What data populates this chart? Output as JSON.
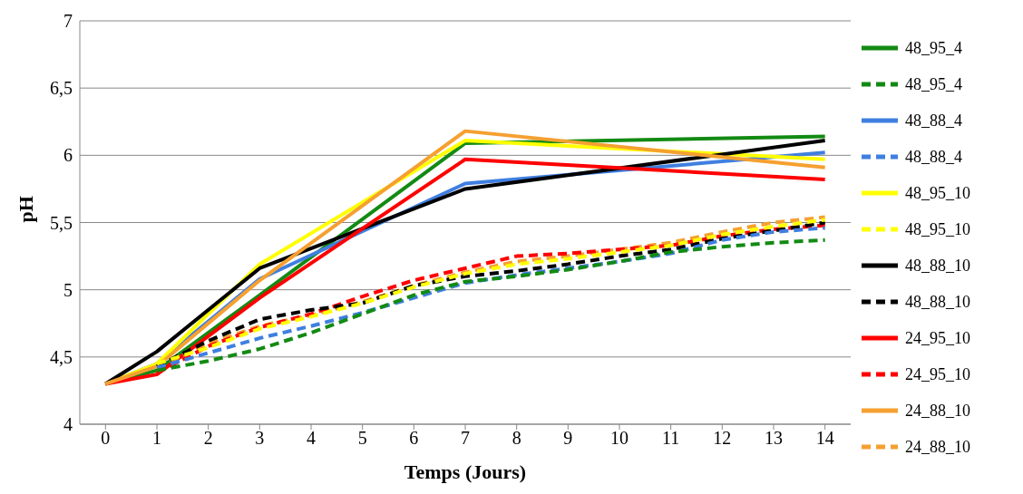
{
  "chart_data": {
    "type": "line",
    "xlabel": "Temps (Jours)",
    "ylabel": "pH",
    "xlim": [
      -0.5,
      14.5
    ],
    "xticks": [
      0,
      1,
      2,
      3,
      4,
      5,
      6,
      7,
      8,
      9,
      10,
      11,
      12,
      13,
      14
    ],
    "ylim": [
      4,
      7
    ],
    "yticks": [
      4,
      {
        "value": 4.5,
        "label": "4,5"
      },
      5,
      {
        "value": 5.5,
        "label": "5,5"
      },
      6,
      {
        "value": 6.5,
        "label": "6,5"
      },
      7
    ],
    "grid": "y",
    "legend": "right",
    "marker": "none",
    "series": [
      {
        "name": "48_95_4",
        "color": "#138a13",
        "line_style": "solid",
        "x": [
          0,
          1,
          3,
          7,
          14
        ],
        "values": [
          4.3,
          4.4,
          4.96,
          6.09,
          6.14
        ]
      },
      {
        "name": "48_95_4",
        "color": "#138a13",
        "line_style": "dashed",
        "x": [
          1,
          2,
          3,
          4,
          5,
          6,
          7,
          8,
          9,
          10,
          11,
          12,
          13,
          14
        ],
        "values": [
          4.4,
          4.47,
          4.56,
          4.68,
          4.82,
          4.96,
          5.06,
          5.1,
          5.15,
          5.21,
          5.28,
          5.32,
          5.35,
          5.37
        ]
      },
      {
        "name": "48_88_4",
        "color": "#3f7fe0",
        "line_style": "solid",
        "x": [
          0,
          1,
          3,
          7,
          14
        ],
        "values": [
          4.3,
          4.45,
          5.08,
          5.79,
          6.02
        ]
      },
      {
        "name": "48_88_4",
        "color": "#3f7fe0",
        "line_style": "dashed",
        "x": [
          1,
          2,
          3,
          4,
          5,
          6,
          7,
          8,
          9,
          10,
          11,
          12,
          13,
          14
        ],
        "values": [
          4.42,
          4.53,
          4.64,
          4.73,
          4.83,
          4.94,
          5.05,
          5.11,
          5.16,
          5.21,
          5.27,
          5.37,
          5.43,
          5.46
        ]
      },
      {
        "name": "48_95_10",
        "color": "#ffff00",
        "line_style": "solid",
        "x": [
          0,
          1,
          3,
          7,
          14
        ],
        "values": [
          4.3,
          4.45,
          5.19,
          6.11,
          5.97
        ]
      },
      {
        "name": "48_95_10",
        "color": "#ffff00",
        "line_style": "dashed",
        "x": [
          1,
          2,
          3,
          4,
          5,
          6,
          7,
          8,
          9,
          10,
          11,
          12,
          13,
          14
        ],
        "values": [
          4.45,
          4.57,
          4.71,
          4.8,
          4.9,
          5.02,
          5.12,
          5.19,
          5.23,
          5.28,
          5.33,
          5.41,
          5.47,
          5.52
        ]
      },
      {
        "name": "48_88_10",
        "color": "#000000",
        "line_style": "solid",
        "x": [
          0,
          1,
          3,
          7,
          14
        ],
        "values": [
          4.3,
          4.54,
          5.16,
          5.75,
          6.11
        ]
      },
      {
        "name": "48_88_10",
        "color": "#000000",
        "line_style": "dashed",
        "x": [
          1,
          2,
          3,
          4,
          5,
          6,
          7,
          8,
          9,
          10,
          11,
          12,
          13,
          14
        ],
        "values": [
          4.43,
          4.62,
          4.78,
          4.85,
          4.9,
          5.03,
          5.1,
          5.14,
          5.19,
          5.25,
          5.3,
          5.38,
          5.44,
          5.5
        ]
      },
      {
        "name": "24_95_10",
        "color": "#ff0000",
        "line_style": "solid",
        "x": [
          0,
          1,
          3,
          7,
          14
        ],
        "values": [
          4.3,
          4.37,
          4.94,
          5.97,
          5.82
        ]
      },
      {
        "name": "24_95_10",
        "color": "#ff0000",
        "line_style": "dashed",
        "x": [
          1,
          2,
          3,
          4,
          5,
          6,
          7,
          8,
          9,
          10,
          11,
          12,
          13,
          14
        ],
        "values": [
          4.38,
          4.58,
          4.72,
          4.82,
          4.95,
          5.07,
          5.16,
          5.25,
          5.27,
          5.3,
          5.33,
          5.4,
          5.45,
          5.48
        ]
      },
      {
        "name": "24_88_10",
        "color": "#f5a030",
        "line_style": "solid",
        "x": [
          0,
          1,
          3,
          7,
          14
        ],
        "values": [
          4.3,
          4.43,
          5.07,
          6.18,
          5.91
        ]
      },
      {
        "name": "24_88_10",
        "color": "#f5a030",
        "line_style": "dashed",
        "x": [
          1,
          2,
          3,
          4,
          5,
          6,
          7,
          8,
          9,
          10,
          11,
          12,
          13,
          14
        ],
        "values": [
          4.42,
          4.6,
          4.73,
          4.81,
          4.91,
          5.03,
          5.13,
          5.21,
          5.25,
          5.3,
          5.35,
          5.43,
          5.5,
          5.54
        ]
      }
    ]
  }
}
